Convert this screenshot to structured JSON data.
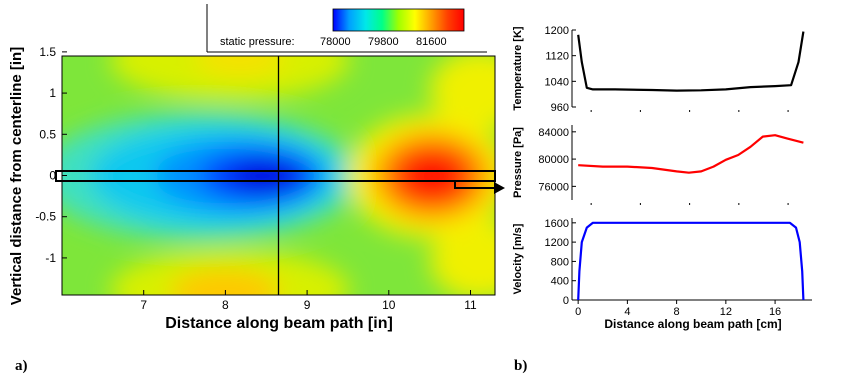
{
  "chart_data": [
    {
      "type": "heatmap",
      "panel_label": "a)",
      "xlabel": "Distance along beam path [in]",
      "ylabel": "Vertical distance from centerline [in]",
      "xlim": [
        6.0,
        11.3
      ],
      "ylim": [
        -1.45,
        1.45
      ],
      "x_ticks": [
        7,
        8,
        9,
        10,
        11
      ],
      "y_ticks": [
        1.5,
        1,
        0.5,
        0,
        -0.5,
        -1
      ],
      "colorbar": {
        "label": "static pressure:",
        "ticks": [
          "78000",
          "79800",
          "81600"
        ],
        "colors": [
          "#0000ff",
          "#00a0ff",
          "#00e8e8",
          "#00ff88",
          "#a0ff00",
          "#ffff00",
          "#ffa000",
          "#ff4000",
          "#ff0000"
        ]
      },
      "centerline_y": 0,
      "marker_x": 8.65,
      "features": [
        {
          "kind": "low-pressure region",
          "center": [
            8.3,
            0.0
          ],
          "value_approx": 76500
        },
        {
          "kind": "high-pressure region",
          "center": [
            10.4,
            0.0
          ],
          "value_approx": 83500
        }
      ]
    },
    {
      "type": "line",
      "panel_label": "b)",
      "ylabel": "Temperature [K]",
      "ylim": [
        960,
        1200
      ],
      "y_ticks": [
        960,
        1040,
        1120,
        1200
      ],
      "xlim": [
        -0.5,
        19
      ],
      "color": "#000000",
      "series": [
        {
          "values": [
            [
              0,
              1185
            ],
            [
              0.3,
              1100
            ],
            [
              0.7,
              1020
            ],
            [
              1.2,
              1015
            ],
            [
              3,
              1015
            ],
            [
              6,
              1013
            ],
            [
              8,
              1011
            ],
            [
              10,
              1012
            ],
            [
              12,
              1015
            ],
            [
              14,
              1022
            ],
            [
              16,
              1025
            ],
            [
              17.3,
              1028
            ],
            [
              17.9,
              1100
            ],
            [
              18.3,
              1195
            ]
          ]
        }
      ]
    },
    {
      "type": "line",
      "ylabel": "Pressure [Pa]",
      "ylim": [
        74000,
        85000
      ],
      "y_ticks": [
        76000,
        80000,
        84000
      ],
      "xlim": [
        -0.5,
        19
      ],
      "color": "#ff0000",
      "series": [
        {
          "values": [
            [
              0,
              79100
            ],
            [
              2,
              78900
            ],
            [
              4,
              78900
            ],
            [
              6,
              78700
            ],
            [
              8,
              78200
            ],
            [
              9,
              78000
            ],
            [
              10,
              78200
            ],
            [
              11,
              78900
            ],
            [
              12,
              79900
            ],
            [
              13,
              80600
            ],
            [
              14,
              81800
            ],
            [
              15,
              83300
            ],
            [
              16,
              83500
            ],
            [
              17,
              83000
            ],
            [
              18.3,
              82400
            ]
          ]
        }
      ]
    },
    {
      "type": "line",
      "xlabel": "Distance along beam path [cm]",
      "ylabel": "Velocity [m/s]",
      "ylim": [
        0,
        1700
      ],
      "y_ticks": [
        0,
        400,
        800,
        1200,
        1600
      ],
      "xlim": [
        -0.5,
        19
      ],
      "x_ticks": [
        0,
        4,
        8,
        12,
        16
      ],
      "color": "#0000ff",
      "series": [
        {
          "values": [
            [
              0,
              0
            ],
            [
              0.1,
              600
            ],
            [
              0.3,
              1200
            ],
            [
              0.7,
              1500
            ],
            [
              1.2,
              1600
            ],
            [
              17.2,
              1600
            ],
            [
              17.7,
              1500
            ],
            [
              18.0,
              1200
            ],
            [
              18.2,
              600
            ],
            [
              18.3,
              0
            ]
          ]
        }
      ]
    }
  ]
}
